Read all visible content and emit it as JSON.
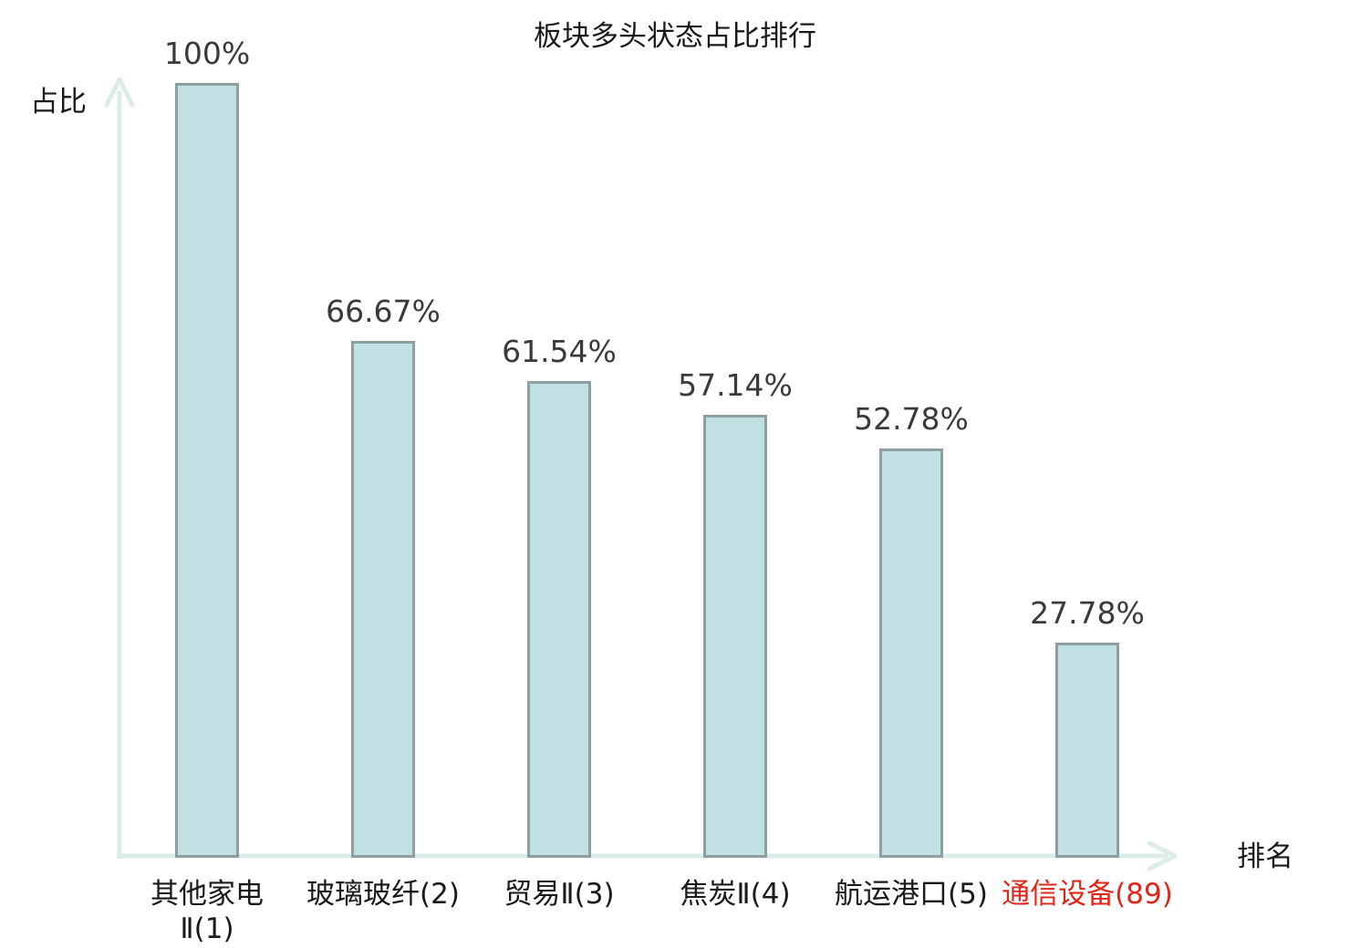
{
  "chart_data": {
    "type": "bar",
    "title": "板块多头状态占比排行",
    "xlabel": "排名",
    "ylabel": "占比",
    "ylim": [
      0,
      100
    ],
    "grid": false,
    "legend": false,
    "categories": [
      {
        "name": "其他家电Ⅱ(1)",
        "lines": [
          "其他家电",
          "Ⅱ(1)"
        ],
        "highlighted": false
      },
      {
        "name": "玻璃玻纤(2)",
        "lines": [
          "玻璃玻纤(2)"
        ],
        "highlighted": false
      },
      {
        "name": "贸易Ⅱ(3)",
        "lines": [
          "贸易Ⅱ(3)"
        ],
        "highlighted": false
      },
      {
        "name": "焦炭Ⅱ(4)",
        "lines": [
          "焦炭Ⅱ(4)"
        ],
        "highlighted": false
      },
      {
        "name": "航运港口(5)",
        "lines": [
          "航运港口(5)"
        ],
        "highlighted": false
      },
      {
        "name": "通信设备(89)",
        "lines": [
          "通信设备(89)"
        ],
        "highlighted": true
      }
    ],
    "values": [
      100,
      66.67,
      61.54,
      57.14,
      52.78,
      27.78
    ],
    "value_labels": [
      "100%",
      "66.67%",
      "61.54%",
      "57.14%",
      "52.78%",
      "27.78%"
    ],
    "colors": {
      "bar_fill": "#c0e0e3",
      "bar_border": "#8d9fa1",
      "axis": "#dcede9",
      "title": "#1a1a1a",
      "axis_label": "#1a1a1a",
      "value_label": "#3a3a3a",
      "category_label": "#1a1a1a",
      "highlight_label": "#e02519"
    }
  }
}
